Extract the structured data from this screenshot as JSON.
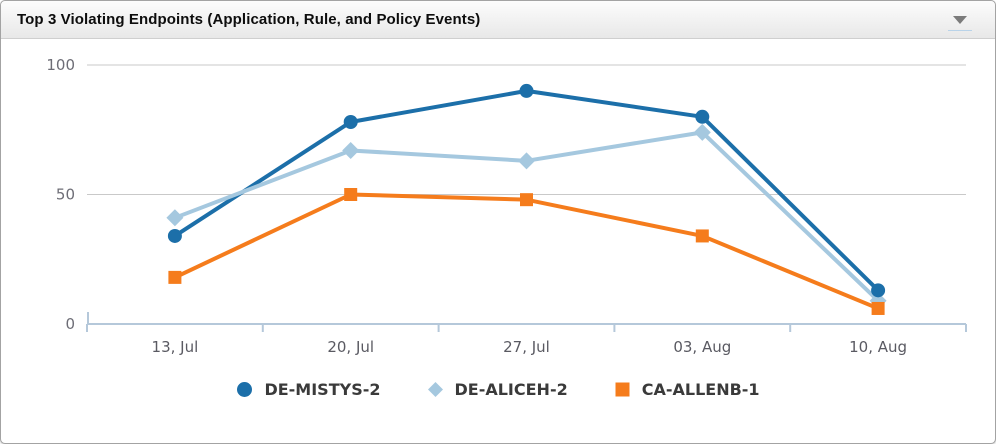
{
  "panel": {
    "title": "Top 3 Violating Endpoints (Application, Rule, and Policy Events)",
    "collapse_icon": "chevron-down-icon"
  },
  "chart_data": {
    "type": "line",
    "title": "Top 3 Violating Endpoints (Application, Rule, and Policy Events)",
    "categories": [
      "13, Jul",
      "20, Jul",
      "27, Jul",
      "03, Aug",
      "10, Aug"
    ],
    "series": [
      {
        "name": "DE-MISTYS-2",
        "values": [
          34,
          78,
          90,
          80,
          13
        ],
        "color": "#1c6fa9",
        "marker": "circle"
      },
      {
        "name": "DE-ALICEH-2",
        "values": [
          41,
          67,
          63,
          74,
          9
        ],
        "color": "#a5c8df",
        "marker": "diamond"
      },
      {
        "name": "CA-ALLENB-1",
        "values": [
          18,
          50,
          48,
          34,
          6
        ],
        "color": "#f57c1c",
        "marker": "square"
      }
    ],
    "xlabel": "",
    "ylabel": "",
    "ylim": [
      0,
      100
    ],
    "yticks": [
      0,
      50,
      100
    ],
    "grid": true,
    "grid_color": "#c9c9c9",
    "axis_color": "#b5c8da",
    "legend_position": "bottom"
  }
}
